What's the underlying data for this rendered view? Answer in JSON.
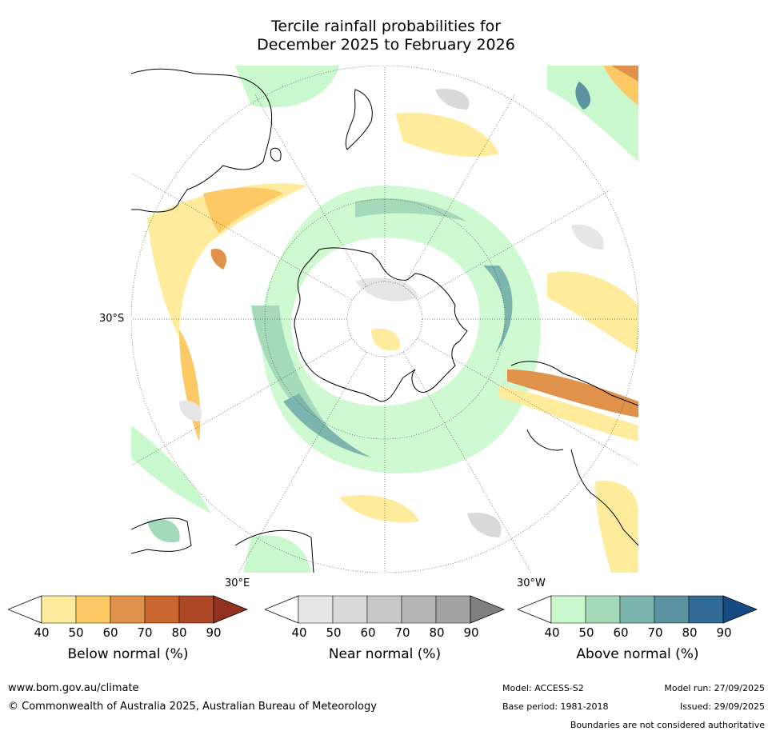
{
  "title": {
    "line1": "Tercile rainfall probabilities for",
    "line2": "December 2025 to February 2026"
  },
  "map": {
    "projection": "south-polar-stereographic",
    "latitude_label": "30°S",
    "longitude_labels": [
      "30°E",
      "30°W"
    ]
  },
  "colorbars": [
    {
      "name": "below",
      "label": "Below normal (%)",
      "ticks": [
        "40",
        "50",
        "60",
        "70",
        "80",
        "90"
      ],
      "colors": [
        "#ffffff",
        "#feeb9c",
        "#fdc965",
        "#e0924a",
        "#c9652f",
        "#ad4725",
        "#913220"
      ]
    },
    {
      "name": "near",
      "label": "Near normal (%)",
      "ticks": [
        "40",
        "50",
        "60",
        "70",
        "80",
        "90"
      ],
      "colors": [
        "#ffffff",
        "#e6e6e6",
        "#d9d9d9",
        "#c8c8c8",
        "#b5b5b5",
        "#a2a2a2",
        "#808080"
      ]
    },
    {
      "name": "above",
      "label": "Above normal (%)",
      "ticks": [
        "40",
        "50",
        "60",
        "70",
        "80",
        "90"
      ],
      "colors": [
        "#ffffff",
        "#c9f8cc",
        "#a4d9b9",
        "#7bb5ae",
        "#5b92a0",
        "#336b97",
        "#154a85"
      ]
    }
  ],
  "footer": {
    "website": "www.bom.gov.au/climate",
    "copyright": "© Commonwealth of Australia 2025, Australian Bureau of Meteorology",
    "model": "Model: ACCESS-S2",
    "base_period": "Base period: 1981-2018",
    "model_run": "Model run: 27/09/2025",
    "issued": "Issued: 29/09/2025",
    "disclaimer": "Boundaries are not considered authoritative"
  }
}
